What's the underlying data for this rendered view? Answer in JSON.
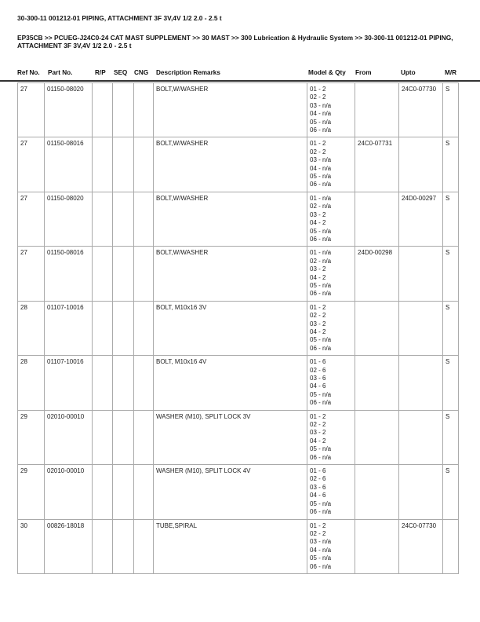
{
  "title": "30-300-11 001212-01 PIPING, ATTACHMENT 3F 3V,4V 1/2 2.0 - 2.5 t",
  "breadcrumb": "EP35CB >> PCUEG-J24C0-24 CAT MAST SUPPLEMENT >> 30 MAST >> 300 Lubrication & Hydraulic System >> 30-300-11 001212-01 PIPING, ATTACHMENT 3F 3V,4V 1/2 2.0 - 2.5 t",
  "columns": [
    "Ref No.",
    "Part No.",
    "R/P",
    "SEQ",
    "CNG",
    "Description Remarks",
    "Model & Qty",
    "From",
    "Upto",
    "M/R"
  ],
  "rows": [
    {
      "ref": "27",
      "part": "01150-08020",
      "rp": "",
      "seq": "",
      "cng": "",
      "desc": "BOLT,W/WASHER",
      "models": [
        "01 - 2",
        "02 - 2",
        "03 - n/a",
        "04 - n/a",
        "05 - n/a",
        "06 - n/a"
      ],
      "from": "",
      "upto": "24C0-07730",
      "mr": "S"
    },
    {
      "ref": "27",
      "part": "01150-08016",
      "rp": "",
      "seq": "",
      "cng": "",
      "desc": "BOLT,W/WASHER",
      "models": [
        "01 - 2",
        "02 - 2",
        "03 - n/a",
        "04 - n/a",
        "05 - n/a",
        "06 - n/a"
      ],
      "from": "24C0-07731",
      "upto": "",
      "mr": "S"
    },
    {
      "ref": "27",
      "part": "01150-08020",
      "rp": "",
      "seq": "",
      "cng": "",
      "desc": "BOLT,W/WASHER",
      "models": [
        "01 - n/a",
        "02 - n/a",
        "03 - 2",
        "04 - 2",
        "05 - n/a",
        "06 - n/a"
      ],
      "from": "",
      "upto": "24D0-00297",
      "mr": "S"
    },
    {
      "ref": "27",
      "part": "01150-08016",
      "rp": "",
      "seq": "",
      "cng": "",
      "desc": "BOLT,W/WASHER",
      "models": [
        "01 - n/a",
        "02 - n/a",
        "03 - 2",
        "04 - 2",
        "05 - n/a",
        "06 - n/a"
      ],
      "from": "24D0-00298",
      "upto": "",
      "mr": "S"
    },
    {
      "ref": "28",
      "part": "01107-10016",
      "rp": "",
      "seq": "",
      "cng": "",
      "desc": "BOLT, M10x16 3V",
      "models": [
        "01 - 2",
        "02 - 2",
        "03 - 2",
        "04 - 2",
        "05 - n/a",
        "06 - n/a"
      ],
      "from": "",
      "upto": "",
      "mr": "S"
    },
    {
      "ref": "28",
      "part": "01107-10016",
      "rp": "",
      "seq": "",
      "cng": "",
      "desc": "BOLT, M10x16 4V",
      "models": [
        "01 - 6",
        "02 - 6",
        "03 - 6",
        "04 - 6",
        "05 - n/a",
        "06 - n/a"
      ],
      "from": "",
      "upto": "",
      "mr": "S"
    },
    {
      "ref": "29",
      "part": "02010-00010",
      "rp": "",
      "seq": "",
      "cng": "",
      "desc": "WASHER (M10), SPLIT LOCK 3V",
      "models": [
        "01 - 2",
        "02 - 2",
        "03 - 2",
        "04 - 2",
        "05 - n/a",
        "06 - n/a"
      ],
      "from": "",
      "upto": "",
      "mr": "S"
    },
    {
      "ref": "29",
      "part": "02010-00010",
      "rp": "",
      "seq": "",
      "cng": "",
      "desc": "WASHER (M10), SPLIT LOCK 4V",
      "models": [
        "01 - 6",
        "02 - 6",
        "03 - 6",
        "04 - 6",
        "05 - n/a",
        "06 - n/a"
      ],
      "from": "",
      "upto": "",
      "mr": "S"
    },
    {
      "ref": "30",
      "part": "00826-18018",
      "rp": "",
      "seq": "",
      "cng": "",
      "desc": "TUBE,SPIRAL",
      "models": [
        "01 - 2",
        "02 - 2",
        "03 - n/a",
        "04 - n/a",
        "05 - n/a",
        "06 - n/a"
      ],
      "from": "",
      "upto": "24C0-07730",
      "mr": ""
    }
  ]
}
